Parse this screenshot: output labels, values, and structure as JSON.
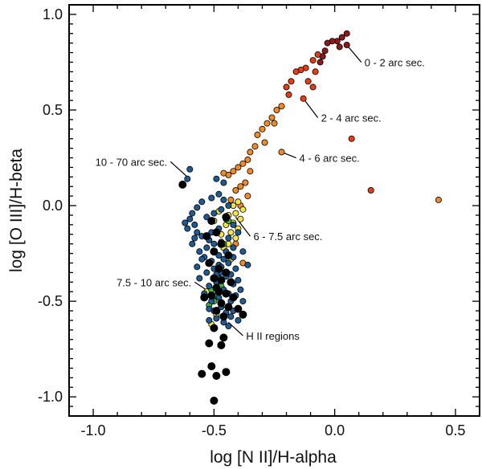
{
  "chart_data": {
    "type": "scatter",
    "title": "",
    "xlabel": "log [N II]/H-alpha",
    "ylabel": "log [O III]/H-beta",
    "xlim": [
      -1.1,
      0.6
    ],
    "ylim": [
      -1.1,
      1.05
    ],
    "x_ticks": [
      -1.0,
      -0.5,
      0.0,
      0.5
    ],
    "x_tick_labels": [
      "-1.0",
      "-0.5",
      "0.0",
      "0.5"
    ],
    "y_ticks": [
      1.0,
      0.5,
      0.0,
      -0.5,
      -1.0
    ],
    "y_tick_labels": [
      "1.0",
      "0.5",
      "0.0",
      "-0.5",
      "-1.0"
    ],
    "grid": false,
    "series": [
      {
        "name": "0 - 2 arc sec.",
        "color": "#8b1a1a",
        "points": [
          [
            0.05,
            0.9
          ],
          [
            0.03,
            0.88
          ],
          [
            0.01,
            0.86
          ],
          [
            -0.01,
            0.86
          ],
          [
            -0.03,
            0.85
          ],
          [
            0.05,
            0.84
          ],
          [
            0.02,
            0.83
          ],
          [
            -0.04,
            0.81
          ],
          [
            -0.05,
            0.78
          ],
          [
            -0.06,
            0.75
          ]
        ]
      },
      {
        "name": "2 - 4 arc sec.",
        "color": "#e63d14",
        "points": [
          [
            -0.07,
            0.79
          ],
          [
            -0.09,
            0.76
          ],
          [
            -0.12,
            0.72
          ],
          [
            -0.14,
            0.71
          ],
          [
            -0.16,
            0.7
          ],
          [
            -0.08,
            0.7
          ],
          [
            -0.18,
            0.65
          ],
          [
            -0.2,
            0.62
          ],
          [
            -0.11,
            0.65
          ],
          [
            -0.09,
            0.62
          ],
          [
            -0.19,
            0.58
          ],
          [
            -0.13,
            0.56
          ],
          [
            0.07,
            0.35
          ],
          [
            0.15,
            0.08
          ]
        ]
      },
      {
        "name": "4 - 6 arc sec.",
        "color": "#f08a25",
        "points": [
          [
            -0.22,
            0.52
          ],
          [
            -0.24,
            0.5
          ],
          [
            -0.26,
            0.46
          ],
          [
            -0.28,
            0.43
          ],
          [
            -0.3,
            0.4
          ],
          [
            -0.25,
            0.43
          ],
          [
            -0.32,
            0.37
          ],
          [
            -0.29,
            0.33
          ],
          [
            -0.33,
            0.31
          ],
          [
            -0.35,
            0.28
          ],
          [
            -0.36,
            0.24
          ],
          [
            -0.38,
            0.22
          ],
          [
            -0.4,
            0.2
          ],
          [
            -0.35,
            0.18
          ],
          [
            -0.42,
            0.18
          ],
          [
            -0.44,
            0.16
          ],
          [
            -0.46,
            0.17
          ],
          [
            -0.37,
            0.12
          ],
          [
            -0.39,
            0.1
          ],
          [
            -0.41,
            0.08
          ],
          [
            -0.36,
            0.05
          ],
          [
            -0.43,
            0.03
          ],
          [
            -0.39,
            0.0
          ],
          [
            -0.41,
            -0.2
          ],
          [
            -0.38,
            -0.3
          ],
          [
            -0.22,
            0.28
          ],
          [
            0.43,
            0.03
          ]
        ]
      },
      {
        "name": "6 - 7.5 arc sec.",
        "color": "#f5e34a",
        "points": [
          [
            -0.4,
            0.02
          ],
          [
            -0.42,
            0.0
          ],
          [
            -0.38,
            -0.02
          ],
          [
            -0.41,
            -0.04
          ],
          [
            -0.44,
            -0.05
          ],
          [
            -0.39,
            -0.07
          ],
          [
            -0.42,
            -0.09
          ],
          [
            -0.4,
            -0.12
          ],
          [
            -0.43,
            -0.14
          ],
          [
            -0.45,
            -0.1
          ],
          [
            -0.41,
            -0.17
          ],
          [
            -0.44,
            -0.2
          ],
          [
            -0.46,
            -0.22
          ],
          [
            -0.48,
            -0.03
          ],
          [
            -0.5,
            -0.08
          ],
          [
            -0.47,
            -0.15
          ],
          [
            -0.53,
            -0.45
          ],
          [
            -0.51,
            -0.62
          ],
          [
            -0.49,
            -0.57
          ],
          [
            -0.43,
            -0.28
          ]
        ]
      },
      {
        "name": "7.5 - 10 arc sec.",
        "color": "#3dbb3d",
        "points": [
          [
            -0.52,
            -0.52
          ],
          [
            -0.5,
            -0.5
          ],
          [
            -0.49,
            -0.47
          ],
          [
            -0.51,
            -0.44
          ],
          [
            -0.47,
            -0.42
          ],
          [
            -0.46,
            -0.2
          ],
          [
            -0.44,
            -0.08
          ],
          [
            -0.48,
            -0.38
          ]
        ]
      },
      {
        "name": "10 - 70 arc sec.",
        "color": "#1f5a90",
        "points": [
          [
            -0.6,
            0.19
          ],
          [
            -0.61,
            0.14
          ],
          [
            -0.63,
            0.11
          ],
          [
            -0.49,
            0.14
          ],
          [
            -0.46,
            0.12
          ],
          [
            -0.51,
            0.04
          ],
          [
            -0.55,
            0.02
          ],
          [
            -0.57,
            -0.01
          ],
          [
            -0.59,
            -0.04
          ],
          [
            -0.6,
            -0.07
          ],
          [
            -0.58,
            -0.1
          ],
          [
            -0.61,
            -0.12
          ],
          [
            -0.57,
            -0.14
          ],
          [
            -0.55,
            -0.16
          ],
          [
            -0.52,
            -0.18
          ],
          [
            -0.5,
            -0.2
          ],
          [
            -0.53,
            -0.22
          ],
          [
            -0.56,
            -0.24
          ],
          [
            -0.54,
            -0.27
          ],
          [
            -0.51,
            -0.29
          ],
          [
            -0.48,
            -0.31
          ],
          [
            -0.5,
            -0.33
          ],
          [
            -0.53,
            -0.35
          ],
          [
            -0.47,
            -0.35
          ],
          [
            -0.45,
            -0.37
          ],
          [
            -0.49,
            -0.4
          ],
          [
            -0.52,
            -0.42
          ],
          [
            -0.46,
            -0.44
          ],
          [
            -0.44,
            -0.46
          ],
          [
            -0.48,
            -0.48
          ],
          [
            -0.51,
            -0.5
          ],
          [
            -0.43,
            -0.5
          ],
          [
            -0.47,
            -0.53
          ],
          [
            -0.5,
            -0.55
          ],
          [
            -0.45,
            -0.56
          ],
          [
            -0.42,
            -0.55
          ],
          [
            -0.49,
            -0.59
          ],
          [
            -0.46,
            -0.61
          ],
          [
            -0.44,
            -0.63
          ],
          [
            -0.4,
            -0.6
          ],
          [
            -0.48,
            0.06
          ],
          [
            -0.46,
            0.03
          ],
          [
            -0.44,
            0.0
          ],
          [
            -0.47,
            -0.02
          ],
          [
            -0.5,
            -0.04
          ],
          [
            -0.53,
            -0.06
          ],
          [
            -0.45,
            -0.07
          ],
          [
            -0.42,
            -0.1
          ],
          [
            -0.48,
            -0.12
          ],
          [
            -0.51,
            -0.14
          ],
          [
            -0.44,
            -0.17
          ],
          [
            -0.47,
            -0.19
          ],
          [
            -0.42,
            -0.22
          ],
          [
            -0.45,
            -0.24
          ],
          [
            -0.48,
            -0.26
          ],
          [
            -0.42,
            -0.27
          ],
          [
            -0.44,
            -0.3
          ],
          [
            -0.47,
            -0.32
          ],
          [
            -0.41,
            -0.33
          ],
          [
            -0.43,
            -0.36
          ],
          [
            -0.4,
            -0.39
          ],
          [
            -0.42,
            -0.41
          ],
          [
            -0.39,
            -0.44
          ],
          [
            -0.41,
            -0.47
          ],
          [
            -0.38,
            -0.5
          ],
          [
            -0.55,
            -0.28
          ],
          [
            -0.57,
            -0.32
          ],
          [
            -0.59,
            -0.2
          ],
          [
            -0.62,
            -0.09
          ],
          [
            -0.58,
            -0.17
          ],
          [
            -0.56,
            -0.38
          ],
          [
            -0.54,
            -0.46
          ],
          [
            -0.52,
            -0.54
          ],
          [
            -0.4,
            -0.14
          ],
          [
            -0.38,
            -0.24
          ],
          [
            -0.36,
            -0.31
          ],
          [
            -0.46,
            -0.28
          ],
          [
            -0.49,
            -0.36
          ],
          [
            -0.43,
            -0.58
          ],
          [
            -0.52,
            -0.6
          ]
        ]
      },
      {
        "name": "H II regions",
        "color": "#000000",
        "points": [
          [
            -0.63,
            0.11
          ],
          [
            -0.51,
            -0.08
          ],
          [
            -0.45,
            -0.06
          ],
          [
            -0.49,
            -0.14
          ],
          [
            -0.53,
            -0.16
          ],
          [
            -0.47,
            -0.2
          ],
          [
            -0.5,
            -0.24
          ],
          [
            -0.44,
            -0.26
          ],
          [
            -0.52,
            -0.3
          ],
          [
            -0.48,
            -0.33
          ],
          [
            -0.45,
            -0.35
          ],
          [
            -0.5,
            -0.38
          ],
          [
            -0.47,
            -0.39
          ],
          [
            -0.43,
            -0.4
          ],
          [
            -0.49,
            -0.43
          ],
          [
            -0.45,
            -0.46
          ],
          [
            -0.51,
            -0.47
          ],
          [
            -0.42,
            -0.48
          ],
          [
            -0.47,
            -0.51
          ],
          [
            -0.44,
            -0.53
          ],
          [
            -0.49,
            -0.55
          ],
          [
            -0.4,
            -0.54
          ],
          [
            -0.46,
            -0.58
          ],
          [
            -0.38,
            -0.57
          ],
          [
            -0.5,
            -0.64
          ],
          [
            -0.46,
            -0.69
          ],
          [
            -0.52,
            -0.72
          ],
          [
            -0.47,
            -0.73
          ],
          [
            -0.51,
            -0.84
          ],
          [
            -0.45,
            -0.87
          ],
          [
            -0.55,
            -0.88
          ],
          [
            -0.49,
            -0.89
          ],
          [
            -0.5,
            -1.02
          ],
          [
            -0.54,
            -0.48
          ],
          [
            -0.48,
            -0.45
          ]
        ]
      }
    ],
    "annotations": [
      {
        "text": "0 - 2 arc sec.",
        "x": 0.05,
        "y": 0.84,
        "tx": 0.11,
        "ty": 0.75,
        "anchor": "start"
      },
      {
        "text": "2 - 4 arc sec.",
        "x": -0.13,
        "y": 0.56,
        "tx": -0.07,
        "ty": 0.46,
        "anchor": "start"
      },
      {
        "text": "4 - 6 arc sec.",
        "x": -0.22,
        "y": 0.28,
        "tx": -0.16,
        "ty": 0.25,
        "anchor": "start"
      },
      {
        "text": "10 - 70 arc sec.",
        "x": -0.61,
        "y": 0.15,
        "tx": -0.68,
        "ty": 0.23,
        "anchor": "end"
      },
      {
        "text": "6 - 7.5 arc sec.",
        "x": -0.41,
        "y": -0.06,
        "tx": -0.35,
        "ty": -0.16,
        "anchor": "start"
      },
      {
        "text": "7.5 - 10 arc sec.",
        "x": -0.52,
        "y": -0.45,
        "tx": -0.58,
        "ty": -0.4,
        "anchor": "end"
      },
      {
        "text": "H II regions",
        "x": -0.44,
        "y": -0.61,
        "tx": -0.38,
        "ty": -0.68,
        "anchor": "start"
      }
    ]
  }
}
